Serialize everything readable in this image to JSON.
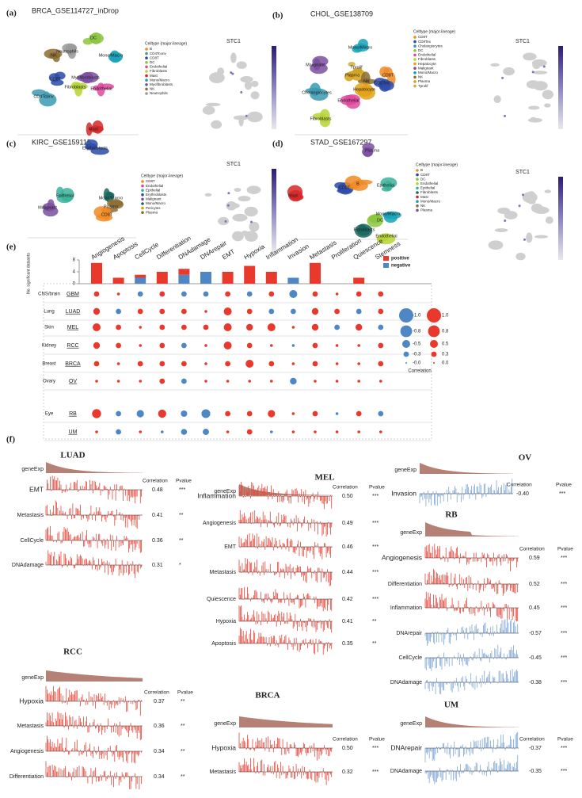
{
  "panels_top": [
    {
      "label": "(a)",
      "title": "BRCA_GSE114727_inDrop",
      "legend_title": "Celltype (major-lineage)",
      "feature": "STC1",
      "legend": [
        {
          "name": "B",
          "color": "#f08a24"
        },
        {
          "name": "CD4Tconv",
          "color": "#3b9ab2"
        },
        {
          "name": "CD8T",
          "color": "#2b4aa8"
        },
        {
          "name": "DC",
          "color": "#8cc63f"
        },
        {
          "name": "Endothelial",
          "color": "#e0479e"
        },
        {
          "name": "Fibroblasts",
          "color": "#b5d334"
        },
        {
          "name": "Mast",
          "color": "#d62728"
        },
        {
          "name": "Mono/Macro",
          "color": "#17a2b8"
        },
        {
          "name": "Myofibroblasts",
          "color": "#7b4fa0"
        },
        {
          "name": "NK",
          "color": "#8c6d31"
        },
        {
          "name": "Neutrophils",
          "color": "#999999"
        }
      ],
      "clusters": [
        "DC",
        "Neutrophils",
        "Mono/Macro",
        "NK",
        "CD8T",
        "Myofibroblasts",
        "Fibroblasts",
        "Endothelial",
        "CD4Tconv",
        "Mast"
      ]
    },
    {
      "label": "(b)",
      "title": "CHOL_GSE138709",
      "legend_title": "Celltype (major-lineage)",
      "feature": "STC1",
      "legend": [
        {
          "name": "CD8T",
          "color": "#f08a24"
        },
        {
          "name": "CD8Tex",
          "color": "#2b4aa8"
        },
        {
          "name": "Cholangiocytes",
          "color": "#3b9ab2"
        },
        {
          "name": "DC",
          "color": "#8cc63f"
        },
        {
          "name": "Endothelial",
          "color": "#e0479e"
        },
        {
          "name": "Fibroblasts",
          "color": "#b5d334"
        },
        {
          "name": "Hepatocyte",
          "color": "#e3a21a"
        },
        {
          "name": "Malignant",
          "color": "#7b4fa0"
        },
        {
          "name": "Mono/Macro",
          "color": "#17a2b8"
        },
        {
          "name": "NK",
          "color": "#8c6d31"
        },
        {
          "name": "Plasma",
          "color": "#d4a017"
        },
        {
          "name": "Tprolif",
          "color": "#c9b037"
        }
      ],
      "clusters": [
        "Mono/Macro",
        "Malignant",
        "Tprolif",
        "Plasma",
        "CD8T",
        "NK",
        "CD8Tex",
        "Hepatocyte",
        "Cholangiocytes",
        "Endothelial",
        "Fibroblasts"
      ]
    },
    {
      "label": "(c)",
      "title": "KIRC_GSE159115",
      "legend_title": "Celltype (major-lineage)",
      "feature": "STC1",
      "legend": [
        {
          "name": "CD8T",
          "color": "#f08a24"
        },
        {
          "name": "Endothelial",
          "color": "#e0479e"
        },
        {
          "name": "Epithelial",
          "color": "#3bb39b"
        },
        {
          "name": "Erythroblasts",
          "color": "#2b4aa8"
        },
        {
          "name": "Malignant",
          "color": "#7b4fa0"
        },
        {
          "name": "Mono/Macro",
          "color": "#17675f"
        },
        {
          "name": "Pericytes",
          "color": "#d4a017"
        },
        {
          "name": "Plasma",
          "color": "#8c6d31"
        }
      ],
      "clusters": [
        "Erythroblasts",
        "Epithelial",
        "Malignant",
        "Mono/Macro",
        "Plasma",
        "CD8T"
      ]
    },
    {
      "label": "(d)",
      "title": "STAD_GSE167297",
      "legend_title": "Celltype (major-lineage)",
      "feature": "STC1",
      "legend": [
        {
          "name": "B",
          "color": "#f08a24"
        },
        {
          "name": "CD8T",
          "color": "#2b4aa8"
        },
        {
          "name": "DC",
          "color": "#8cc63f"
        },
        {
          "name": "Endothelial",
          "color": "#b5d334"
        },
        {
          "name": "Epithelial",
          "color": "#3bb39b"
        },
        {
          "name": "Fibroblasts",
          "color": "#17675f"
        },
        {
          "name": "Mast",
          "color": "#d62728"
        },
        {
          "name": "Mono/Macro",
          "color": "#17a2b8"
        },
        {
          "name": "NK",
          "color": "#8c6d31"
        },
        {
          "name": "Plasma",
          "color": "#7b4fa0"
        }
      ],
      "clusters": [
        "Plasma",
        "CD8T",
        "B",
        "Epithelial",
        "Mast",
        "Mono/Macro",
        "DC",
        "Fibroblasts",
        "Endothelial"
      ]
    }
  ],
  "panel_labels": {
    "e": "(e)",
    "f": "(f)"
  },
  "chart_data": [
    {
      "type": "bar",
      "y_label": "No. significant datasets",
      "categories": [
        "Angiogenesis",
        "Apoptosis",
        "CellCycle",
        "Differentiation",
        "DNAdamage",
        "DNArepair",
        "EMT",
        "Hypoxia",
        "Inflammation",
        "Invasion",
        "Metastasis",
        "Proliferation",
        "Quiescence",
        "Stemness"
      ],
      "series": [
        {
          "name": "negative",
          "color": "#4e86c6",
          "values": [
            0,
            0,
            2,
            0,
            3,
            4,
            0,
            0,
            0,
            2,
            0,
            0,
            0,
            0
          ]
        },
        {
          "name": "positive",
          "color": "#e8392c",
          "values": [
            7,
            2,
            1,
            4,
            2,
            0,
            4,
            6,
            4,
            0,
            7,
            0,
            2,
            0
          ]
        }
      ],
      "ylim": [
        0,
        8
      ],
      "yticks": [
        0,
        4,
        8
      ],
      "legend": "upper right"
    },
    {
      "type": "bubble",
      "tissues": [
        "CNS/brain",
        "Lung",
        "Skin",
        "Kidney",
        "Breast",
        "Ovary",
        "Eye",
        null
      ],
      "rows": [
        "GBM",
        "LUAD",
        "MEL",
        "RCC",
        "BRCA",
        "OV",
        "RB",
        "UM"
      ],
      "values": [
        [
          0.3,
          0.1,
          -0.3,
          0.3,
          -0.3,
          -0.3,
          0.3,
          -0.3,
          0.3,
          -0.5,
          0.3,
          0.1,
          0.3,
          0.3
        ],
        [
          0.4,
          -0.3,
          0.3,
          0.3,
          0.3,
          0.1,
          0.5,
          0.3,
          -0.3,
          -0.3,
          0.4,
          0.3,
          -0.3,
          0.3
        ],
        [
          0.5,
          0.3,
          0.1,
          0.3,
          0.3,
          0.3,
          0.5,
          0.4,
          0.5,
          0.1,
          0.4,
          -0.3,
          0.4,
          -0.3
        ],
        [
          0.4,
          0.3,
          0.1,
          0.3,
          -0.3,
          0.1,
          0.5,
          0.3,
          0.1,
          -0.1,
          0.3,
          0.1,
          0.1,
          0.3
        ],
        [
          0.3,
          0.1,
          0.3,
          0.3,
          0.3,
          0.1,
          0.3,
          0.5,
          0.3,
          0.1,
          0.3,
          0.1,
          0.1,
          0.3
        ],
        [
          0.1,
          0.1,
          0.1,
          0.3,
          -0.3,
          0.1,
          0.1,
          0.1,
          0.1,
          -0.4,
          0.1,
          0.1,
          0.1,
          0.1
        ],
        [
          0.59,
          -0.3,
          -0.45,
          0.52,
          -0.38,
          -0.57,
          0.3,
          0.3,
          0.45,
          0.1,
          0.3,
          -0.1,
          0.3,
          -0.3
        ],
        [
          0.1,
          -0.3,
          0.1,
          -0.1,
          -0.35,
          -0.37,
          0.1,
          0.3,
          -0.1,
          0.1,
          0.1,
          0.1,
          0.1,
          0.1
        ]
      ],
      "positive_color": "#e8392c",
      "negative_color": "#4e86c6",
      "size_legend": {
        "title": "Correlation",
        "negative": [
          {
            "value": -1,
            "label": "-1.0"
          },
          {
            "value": -0.8,
            "label": "-0.8"
          },
          {
            "value": -0.5,
            "label": "-0.5"
          },
          {
            "value": -0.3,
            "label": "-0.3"
          },
          {
            "value": 0,
            "label": "-0.0"
          }
        ],
        "positive": [
          {
            "value": 1,
            "label": "1.0"
          },
          {
            "value": 0.8,
            "label": "0.8"
          },
          {
            "value": 0.5,
            "label": "0.5"
          },
          {
            "value": 0.3,
            "label": "0.3"
          },
          {
            "value": 0,
            "label": "0.0"
          }
        ]
      }
    }
  ],
  "panel_f": [
    {
      "title": "LUAD",
      "gene": "geneExp",
      "corr_header": "Correlation",
      "p_header": "Pvalue",
      "rows": [
        {
          "name": "EMT",
          "corr": "0.48",
          "p": "***",
          "highlight": true
        },
        {
          "name": "Metastasis",
          "corr": "0.41",
          "p": "**"
        },
        {
          "name": "CellCycle",
          "corr": "0.36",
          "p": "**"
        },
        {
          "name": "DNAdamage",
          "corr": "0.31",
          "p": "*"
        }
      ]
    },
    {
      "title": "MEL",
      "gene": "geneExp",
      "corr_header": "Correlation",
      "p_header": "Pvalue",
      "rows": [
        {
          "name": "Inflammation",
          "corr": "0.50",
          "p": "***",
          "highlight": true
        },
        {
          "name": "Angiogenesis",
          "corr": "0.49",
          "p": "***"
        },
        {
          "name": "EMT",
          "corr": "0.46",
          "p": "***"
        },
        {
          "name": "Metastasis",
          "corr": "0.44",
          "p": "***"
        },
        {
          "name": "Quiescence",
          "corr": "0.42",
          "p": "***"
        },
        {
          "name": "Hypoxia",
          "corr": "0.41",
          "p": "**"
        },
        {
          "name": "Apoptosis",
          "corr": "0.35",
          "p": "**"
        }
      ]
    },
    {
      "title": "OV",
      "gene": "geneExp",
      "corr_header": "Correlation",
      "p_header": "Pvalue",
      "rows": [
        {
          "name": "Invasion",
          "corr": "-0.40",
          "p": "***",
          "highlight": true
        }
      ]
    },
    {
      "title": "RB",
      "gene": "geneExp",
      "corr_header": "Correlation",
      "p_header": "Pvalue",
      "rows": [
        {
          "name": "Angiogenesis",
          "corr": "0.59",
          "p": "***",
          "highlight": true
        },
        {
          "name": "Differentiation",
          "corr": "0.52",
          "p": "***"
        },
        {
          "name": "Inflammation",
          "corr": "0.45",
          "p": "***"
        },
        {
          "name": "DNArepair",
          "corr": "-0.57",
          "p": "***"
        },
        {
          "name": "CellCycle",
          "corr": "-0.45",
          "p": "***"
        },
        {
          "name": "DNAdamage",
          "corr": "-0.38",
          "p": "***"
        }
      ]
    },
    {
      "title": "RCC",
      "gene": "geneExp",
      "corr_header": "Correlation",
      "p_header": "Pvalue",
      "rows": [
        {
          "name": "Hypoxia",
          "corr": "0.37",
          "p": "**",
          "highlight": true
        },
        {
          "name": "Metastasis",
          "corr": "0.36",
          "p": "**"
        },
        {
          "name": "Angiogenesis",
          "corr": "0.34",
          "p": "**"
        },
        {
          "name": "Differentiation",
          "corr": "0.34",
          "p": "**"
        }
      ]
    },
    {
      "title": "BRCA",
      "gene": "geneExp",
      "corr_header": "Correlation",
      "p_header": "Pvalue",
      "rows": [
        {
          "name": "Hypoxia",
          "corr": "0.50",
          "p": "***",
          "highlight": true
        },
        {
          "name": "Metastasis",
          "corr": "0.32",
          "p": "***"
        }
      ]
    },
    {
      "title": "UM",
      "gene": "geneExp",
      "corr_header": "Correlation",
      "p_header": "Pvalue",
      "rows": [
        {
          "name": "DNArepair",
          "corr": "-0.37",
          "p": "***",
          "highlight": true
        },
        {
          "name": "DNAdamage",
          "corr": "-0.35",
          "p": "***"
        }
      ]
    }
  ]
}
